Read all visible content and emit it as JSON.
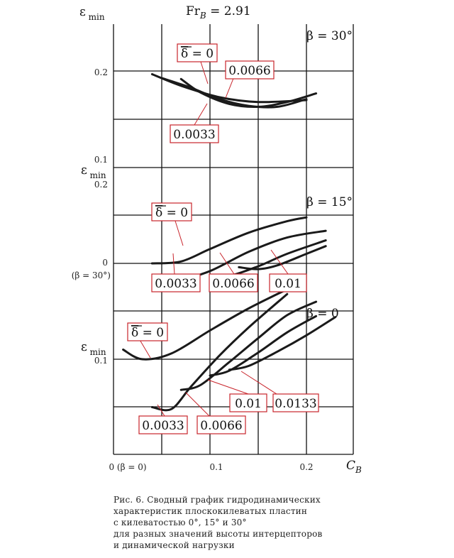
{
  "chart_data": {
    "type": "line",
    "title": "Fr",
    "title_sub": "B",
    "title_value": "= 2.91",
    "xlabel": "C",
    "xlabel_sub": "B",
    "x_ticks": [
      "0 (β = 0)",
      "0.1",
      "0.2"
    ],
    "xlim": [
      0,
      0.2
    ],
    "grid": true,
    "legend_symbol": "δ",
    "panels": [
      {
        "name": "β = 30°",
        "ylabel": "ε",
        "ylabel_sub": "min",
        "y_ticks": [
          "0.2",
          "0.1"
        ],
        "series": [
          {
            "name": "0",
            "x": [
              0.04,
              0.07,
              0.11,
              0.15,
              0.2
            ],
            "y": [
              0.197,
              0.185,
              0.173,
              0.168,
              0.17
            ]
          },
          {
            "name": "0.0033",
            "x": [
              0.07,
              0.09,
              0.12,
              0.15,
              0.18,
              0.21
            ],
            "y": [
              0.192,
              0.178,
              0.166,
              0.163,
              0.168,
              0.177
            ]
          },
          {
            "name": "0.0066",
            "x": [
              0.05,
              0.08,
              0.11,
              0.14,
              0.17,
              0.2
            ],
            "y": [
              0.193,
              0.183,
              0.171,
              0.164,
              0.163,
              0.171
            ]
          }
        ]
      },
      {
        "name": "β = 15°",
        "ylabel": "ε",
        "ylabel_sub": "min",
        "y_ticks": [
          "0.2",
          "0",
          "(β = 30°)"
        ],
        "series": [
          {
            "name": "0",
            "x": [
              0.04,
              0.07,
              0.1,
              0.14,
              0.18,
              0.2
            ],
            "y": [
              0.0,
              0.002,
              0.015,
              0.032,
              0.044,
              0.048
            ]
          },
          {
            "name": "0.0033",
            "x": [
              0.05,
              0.07,
              0.1,
              0.14,
              0.18,
              0.22
            ],
            "y": [
              -0.012,
              -0.016,
              -0.008,
              0.012,
              0.027,
              0.034
            ]
          },
          {
            "name": "0.0066",
            "x": [
              0.1,
              0.12,
              0.15,
              0.18,
              0.22
            ],
            "y": [
              -0.012,
              -0.013,
              -0.003,
              0.01,
              0.024
            ]
          },
          {
            "name": "0.01",
            "x": [
              0.13,
              0.15,
              0.17,
              0.2,
              0.22
            ],
            "y": [
              -0.004,
              -0.006,
              -0.002,
              0.01,
              0.018
            ]
          }
        ]
      },
      {
        "name": "β = 0",
        "ylabel": "ε",
        "ylabel_sub": "min",
        "y_ticks": [
          "0.1"
        ],
        "series": [
          {
            "name": "0",
            "x": [
              0.01,
              0.03,
              0.06,
              0.1,
              0.14,
              0.18
            ],
            "y": [
              0.11,
              0.1,
              0.106,
              0.13,
              0.153,
              0.173
            ]
          },
          {
            "name": "0.0033",
            "x": [
              0.04,
              0.06,
              0.08,
              0.11,
              0.14,
              0.18
            ],
            "y": [
              0.05,
              0.048,
              0.071,
              0.104,
              0.133,
              0.168
            ]
          },
          {
            "name": "0.0066",
            "x": [
              0.07,
              0.09,
              0.12,
              0.15,
              0.18,
              0.21
            ],
            "y": [
              0.068,
              0.073,
              0.097,
              0.122,
              0.146,
              0.16
            ]
          },
          {
            "name": "0.01",
            "x": [
              0.1,
              0.12,
              0.15,
              0.18,
              0.21
            ],
            "y": [
              0.083,
              0.088,
              0.107,
              0.128,
              0.145
            ]
          },
          {
            "name": "0.0133",
            "x": [
              0.12,
              0.14,
              0.17,
              0.2,
              0.23
            ],
            "y": [
              0.089,
              0.093,
              0.108,
              0.125,
              0.144
            ]
          }
        ]
      }
    ]
  },
  "caption_lines": [
    "Рис. 6. Сводный график гидродинамических",
    "характеристик плоскокилеватых пластин",
    "с килеватостью 0°, 15° и 30°",
    "для разных значений высоты интерцепторов",
    "и динамической нагрузки"
  ]
}
